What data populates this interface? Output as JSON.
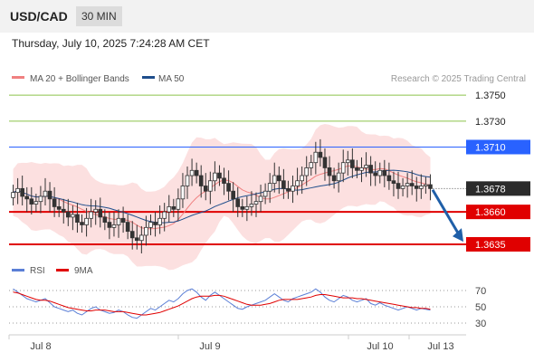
{
  "header": {
    "pair": "USD/CAD",
    "timeframe": "30 MIN",
    "timestamp": "Thursday, July 10, 2025 7:24:28 AM CET"
  },
  "legend": {
    "items": [
      {
        "label": "MA 20 + Bollinger Bands",
        "color": "#f08080"
      },
      {
        "label": "MA 50",
        "color": "#1f4e8c"
      }
    ],
    "credit": "Research © 2025 Trading Central"
  },
  "chart_data": [
    {
      "type": "candlestick",
      "title": "",
      "x_tick_labels": [
        "Jul 8",
        "Jul 9",
        "Jul 10",
        "Jul 13"
      ],
      "ylim": [
        1.3628,
        1.3755
      ],
      "current_price": "1.3678",
      "levels": [
        {
          "value": 1.375,
          "label": "1.3750",
          "kind": "target",
          "color": "#8bc34a"
        },
        {
          "value": 1.373,
          "label": "1.3730",
          "kind": "target",
          "color": "#8bc34a"
        },
        {
          "value": 1.371,
          "label": "1.3710",
          "kind": "pivot",
          "color": "#2962ff"
        },
        {
          "value": 1.366,
          "label": "1.3660",
          "kind": "support",
          "color": "#e00000"
        },
        {
          "value": 1.3635,
          "label": "1.3635",
          "kind": "support",
          "color": "#e00000"
        }
      ],
      "forecast_arrow": {
        "from": 1.3677,
        "to": 1.3637,
        "color": "#1f5fa8"
      },
      "close_approx": [
        1.3675,
        1.3678,
        1.3672,
        1.367,
        1.3666,
        1.3668,
        1.3672,
        1.3676,
        1.367,
        1.3664,
        1.3662,
        1.366,
        1.3656,
        1.3658,
        1.3652,
        1.365,
        1.3655,
        1.366,
        1.3662,
        1.3656,
        1.3652,
        1.3648,
        1.365,
        1.3655,
        1.3652,
        1.3645,
        1.364,
        1.3638,
        1.3642,
        1.3648,
        1.3652,
        1.365,
        1.3655,
        1.366,
        1.3664,
        1.3662,
        1.367,
        1.368,
        1.3688,
        1.3692,
        1.3688,
        1.368,
        1.3676,
        1.3684,
        1.369,
        1.3686,
        1.3682,
        1.3676,
        1.367,
        1.3664,
        1.3662,
        1.3664,
        1.3666,
        1.3668,
        1.3672,
        1.3676,
        1.3682,
        1.3688,
        1.3684,
        1.3678,
        1.3676,
        1.368,
        1.3684,
        1.3688,
        1.3694,
        1.3698,
        1.3706,
        1.3702,
        1.3694,
        1.3688,
        1.3684,
        1.369,
        1.3698,
        1.37,
        1.3694,
        1.3692,
        1.3694,
        1.3696,
        1.369,
        1.3688,
        1.3692,
        1.3688,
        1.3684,
        1.3682,
        1.3678,
        1.368,
        1.3682,
        1.368,
        1.3678,
        1.368,
        1.3681,
        1.3678
      ]
    },
    {
      "type": "line",
      "title": "",
      "series": [
        {
          "name": "RSI",
          "color": "#5b7fd6"
        },
        {
          "name": "9MA",
          "color": "#e00000"
        }
      ],
      "y_tick_labels": [
        "70",
        "50",
        "30"
      ],
      "ylim": [
        20,
        80
      ],
      "rsi_approx": [
        72,
        68,
        64,
        60,
        58,
        56,
        58,
        60,
        55,
        50,
        48,
        46,
        44,
        46,
        42,
        40,
        44,
        48,
        50,
        46,
        44,
        42,
        43,
        46,
        44,
        40,
        37,
        36,
        40,
        44,
        48,
        46,
        50,
        54,
        58,
        56,
        60,
        66,
        70,
        72,
        68,
        62,
        58,
        64,
        68,
        64,
        60,
        56,
        52,
        48,
        47,
        50,
        52,
        54,
        56,
        58,
        62,
        66,
        62,
        58,
        56,
        60,
        62,
        64,
        66,
        68,
        72,
        68,
        62,
        58,
        56,
        60,
        64,
        62,
        58,
        56,
        58,
        60,
        54,
        52,
        55,
        52,
        50,
        48,
        46,
        48,
        50,
        48,
        46,
        48,
        47,
        46
      ],
      "ma9_approx": [
        68,
        67,
        65,
        63,
        61,
        59,
        58,
        58,
        57,
        55,
        53,
        51,
        49,
        48,
        47,
        46,
        45,
        45,
        46,
        46,
        46,
        45,
        44,
        44,
        44,
        43,
        42,
        41,
        40,
        40,
        41,
        42,
        43,
        45,
        47,
        49,
        51,
        54,
        57,
        60,
        62,
        63,
        63,
        63,
        64,
        64,
        63,
        61,
        59,
        57,
        55,
        53,
        52,
        52,
        52,
        53,
        54,
        56,
        58,
        59,
        59,
        59,
        59,
        60,
        61,
        62,
        64,
        65,
        65,
        64,
        63,
        62,
        61,
        61,
        61,
        60,
        60,
        59,
        58,
        57,
        56,
        55,
        54,
        53,
        52,
        51,
        50,
        49,
        49,
        48,
        48,
        47
      ]
    }
  ]
}
